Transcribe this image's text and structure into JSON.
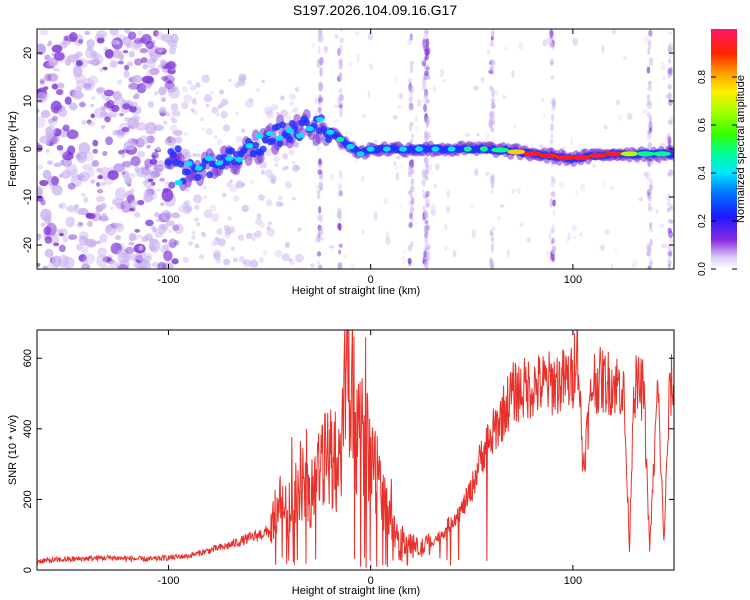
{
  "figure_title": "S197.2026.104.09.16.G17",
  "colors": {
    "snr_line": "#e8312a",
    "track_core": "#2233ff",
    "noise_purple": "#7a2fd6",
    "noise_light": "#cbb2f0"
  },
  "chart_data": [
    {
      "type": "heatmap",
      "title": "S197.2026.104.09.16.G17",
      "xlabel": "Height of straight line (km)",
      "ylabel": "Frequency (Hz)",
      "xlim": [
        -165,
        150
      ],
      "ylim": [
        -25,
        25
      ],
      "x_ticks": [
        -100,
        0,
        100
      ],
      "x_tick_labels": [
        "-100",
        "0",
        "100"
      ],
      "y_ticks": [
        -20,
        -10,
        0,
        10,
        20
      ],
      "y_tick_labels": [
        "-20",
        "-10",
        "0",
        "10",
        "20"
      ],
      "colorbar": {
        "label": "Normalized spectral amplitude",
        "range": [
          0,
          1
        ],
        "ticks": [
          0.0,
          0.2,
          0.4,
          0.6,
          0.8
        ],
        "tick_labels": [
          "0.0",
          "0.2",
          "0.4",
          "0.6",
          "0.8"
        ]
      },
      "signal_track": {
        "description_x": [
          -95,
          -85,
          -75,
          -65,
          -55,
          -45,
          -35,
          -25,
          -15,
          -5,
          0,
          20,
          40,
          60,
          80,
          100,
          120,
          140,
          148
        ],
        "frequency_hz": [
          -5,
          -4,
          -3,
          -1,
          1,
          3,
          4,
          5,
          2,
          -1,
          0,
          0,
          0,
          0,
          -1,
          -2,
          -1,
          -1,
          -1
        ],
        "peak_amplitude": [
          0.3,
          0.35,
          0.35,
          0.35,
          0.35,
          0.3,
          0.3,
          0.3,
          0.45,
          0.35,
          0.35,
          0.4,
          0.4,
          0.45,
          0.9,
          0.85,
          0.85,
          0.45,
          0.4
        ]
      }
    },
    {
      "type": "line",
      "xlabel": "Height of straight line (km)",
      "ylabel": "SNR (10 * v/v)",
      "xlim": [
        -165,
        150
      ],
      "ylim": [
        0,
        680
      ],
      "x_ticks": [
        -100,
        0,
        100
      ],
      "x_tick_labels": [
        "-100",
        "0",
        "100"
      ],
      "y_ticks": [
        0,
        200,
        400,
        600
      ],
      "y_tick_labels": [
        "0",
        "200",
        "400",
        "600"
      ],
      "series": [
        {
          "name": "SNR",
          "x": [
            -165,
            -150,
            -130,
            -110,
            -100,
            -90,
            -80,
            -70,
            -60,
            -50,
            -45,
            -40,
            -35,
            -30,
            -25,
            -20,
            -15,
            -12,
            -10,
            -8,
            -5,
            0,
            3,
            6,
            10,
            15,
            20,
            25,
            30,
            35,
            40,
            45,
            50,
            55,
            60,
            65,
            70,
            80,
            90,
            100,
            102,
            105,
            110,
            120,
            125,
            128,
            130,
            135,
            138,
            142,
            145,
            148,
            150
          ],
          "y": [
            25,
            30,
            35,
            30,
            35,
            40,
            55,
            70,
            90,
            110,
            200,
            150,
            260,
            200,
            290,
            330,
            270,
            650,
            380,
            330,
            390,
            320,
            280,
            210,
            120,
            90,
            70,
            60,
            80,
            100,
            140,
            170,
            230,
            330,
            380,
            440,
            500,
            520,
            530,
            540,
            680,
            290,
            540,
            530,
            520,
            60,
            520,
            510,
            60,
            520,
            80,
            520,
            520
          ]
        }
      ]
    }
  ]
}
